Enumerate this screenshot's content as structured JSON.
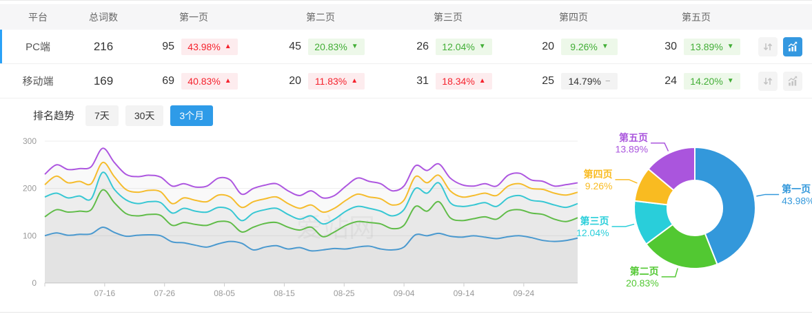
{
  "table": {
    "headers": {
      "platform": "平台",
      "total": "总词数",
      "page1": "第一页",
      "page2": "第二页",
      "page3": "第三页",
      "page4": "第四页",
      "page5": "第五页"
    },
    "rows": [
      {
        "platform": "PC端",
        "total": "216",
        "selected": true,
        "chart_active": true,
        "pages": [
          {
            "count": "95",
            "pct": "43.98%",
            "trend": "up"
          },
          {
            "count": "45",
            "pct": "20.83%",
            "trend": "down"
          },
          {
            "count": "26",
            "pct": "12.04%",
            "trend": "down"
          },
          {
            "count": "20",
            "pct": "9.26%",
            "trend": "down"
          },
          {
            "count": "30",
            "pct": "13.89%",
            "trend": "down"
          }
        ]
      },
      {
        "platform": "移动端",
        "total": "169",
        "selected": false,
        "chart_active": false,
        "pages": [
          {
            "count": "69",
            "pct": "40.83%",
            "trend": "up"
          },
          {
            "count": "20",
            "pct": "11.83%",
            "trend": "up"
          },
          {
            "count": "31",
            "pct": "18.34%",
            "trend": "up"
          },
          {
            "count": "25",
            "pct": "14.79%",
            "trend": "flat"
          },
          {
            "count": "24",
            "pct": "14.20%",
            "trend": "down"
          }
        ]
      }
    ]
  },
  "trend": {
    "title": "排名趋势",
    "tabs": [
      {
        "label": "7天",
        "active": false
      },
      {
        "label": "30天",
        "active": false
      },
      {
        "label": "3个月",
        "active": true
      }
    ]
  },
  "watermark": "爱站网",
  "chart_data": [
    {
      "type": "line",
      "title": "排名趋势（3个月）",
      "x_range": [
        "07-06",
        "10-03"
      ],
      "x_ticks": [
        "07-16",
        "07-26",
        "08-05",
        "08-15",
        "08-25",
        "09-04",
        "09-14",
        "09-24"
      ],
      "ylim": [
        0,
        300
      ],
      "y_ticks": [
        0,
        100,
        200,
        300
      ],
      "grid": true,
      "legend_position": "none",
      "series": [
        {
          "name": "第一页",
          "color": "#3a9de0",
          "values": [
            100,
            106,
            101,
            103,
            104,
            118,
            107,
            99,
            101,
            102,
            100,
            87,
            85,
            80,
            76,
            83,
            88,
            84,
            70,
            76,
            79,
            72,
            75,
            68,
            70,
            73,
            72,
            76,
            78,
            72,
            70,
            76,
            102,
            100,
            105,
            99,
            97,
            100,
            97,
            94,
            98,
            100,
            96,
            90,
            88,
            90,
            95
          ]
        },
        {
          "name": "第二页",
          "color": "#58c53c",
          "values": [
            140,
            155,
            150,
            152,
            155,
            197,
            170,
            147,
            142,
            145,
            143,
            122,
            128,
            124,
            122,
            130,
            128,
            108,
            118,
            126,
            128,
            118,
            112,
            118,
            98,
            108,
            122,
            130,
            128,
            125,
            115,
            122,
            162,
            152,
            172,
            138,
            132,
            136,
            140,
            135,
            152,
            155,
            148,
            145,
            135,
            130,
            138
          ]
        },
        {
          "name": "第三页",
          "color": "#2dcfdc",
          "values": [
            182,
            190,
            180,
            184,
            178,
            234,
            198,
            176,
            168,
            172,
            170,
            148,
            158,
            152,
            150,
            160,
            155,
            132,
            148,
            155,
            158,
            145,
            135,
            142,
            125,
            135,
            152,
            162,
            158,
            152,
            142,
            155,
            200,
            190,
            212,
            170,
            162,
            165,
            170,
            162,
            180,
            185,
            175,
            172,
            165,
            160,
            168
          ]
        },
        {
          "name": "第四页",
          "color": "#fbbf27",
          "values": [
            208,
            226,
            212,
            215,
            210,
            255,
            225,
            198,
            192,
            196,
            193,
            168,
            180,
            175,
            172,
            186,
            182,
            160,
            172,
            178,
            182,
            168,
            158,
            165,
            150,
            158,
            175,
            188,
            182,
            178,
            165,
            175,
            225,
            212,
            228,
            195,
            182,
            185,
            190,
            185,
            205,
            210,
            200,
            198,
            190,
            186,
            192
          ]
        },
        {
          "name": "第五页",
          "color": "#ad56e0",
          "values": [
            230,
            250,
            240,
            242,
            246,
            285,
            255,
            230,
            225,
            228,
            224,
            205,
            210,
            203,
            205,
            222,
            218,
            188,
            200,
            207,
            210,
            195,
            185,
            195,
            180,
            185,
            205,
            222,
            215,
            210,
            195,
            205,
            248,
            238,
            252,
            222,
            208,
            205,
            210,
            205,
            228,
            232,
            218,
            215,
            205,
            208,
            212
          ]
        }
      ]
    },
    {
      "type": "pie",
      "donut": true,
      "labels": [
        "第一页",
        "第二页",
        "第三页",
        "第四页",
        "第五页"
      ],
      "values": [
        43.98,
        20.83,
        12.04,
        9.26,
        13.89
      ],
      "unit": "%",
      "colors": [
        "#3398db",
        "#52c832",
        "#29ceda",
        "#f9bb21",
        "#aa55dd"
      ],
      "legend_position": "outside-labels"
    }
  ],
  "colors": {
    "accent_blue": "#2e9be8",
    "row_selected_bar": "#2aa1f7",
    "badge_up_text": "#f5222d",
    "badge_down_text": "#42ae36",
    "active_button": "#3498e0"
  }
}
